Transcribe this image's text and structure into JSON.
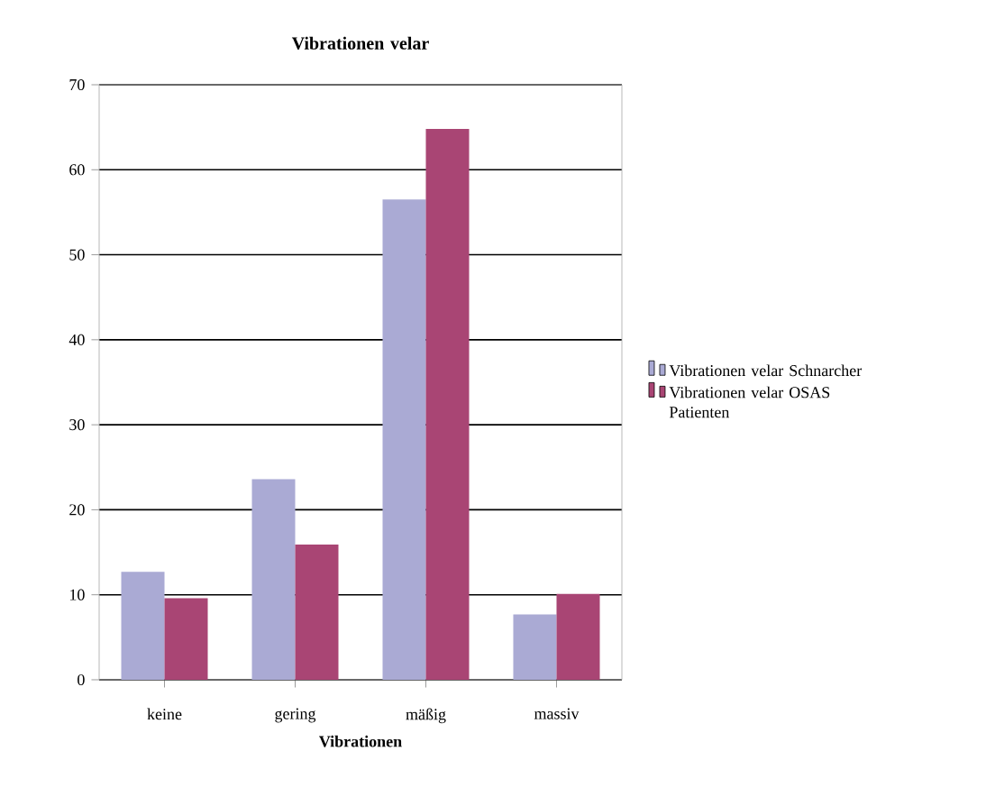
{
  "chart_data": {
    "type": "bar",
    "title": "Vibrationen velar",
    "xlabel": "Vibrationen",
    "categories": [
      "keine",
      "gering",
      "mäßig",
      "massiv"
    ],
    "series": [
      {
        "name": "Vibrationen velar Schnarcher",
        "color": "#aaaad4",
        "values": [
          12.7,
          23.6,
          56.5,
          7.7
        ]
      },
      {
        "name": "Vibrationen velar OSAS Patienten",
        "color": "#a94574",
        "values": [
          9.6,
          15.9,
          64.8,
          10.1
        ]
      }
    ],
    "ylim": [
      0,
      70
    ],
    "yticks": [
      0,
      10,
      20,
      30,
      40,
      50,
      60,
      70
    ],
    "grid": "y",
    "legend": "right"
  }
}
